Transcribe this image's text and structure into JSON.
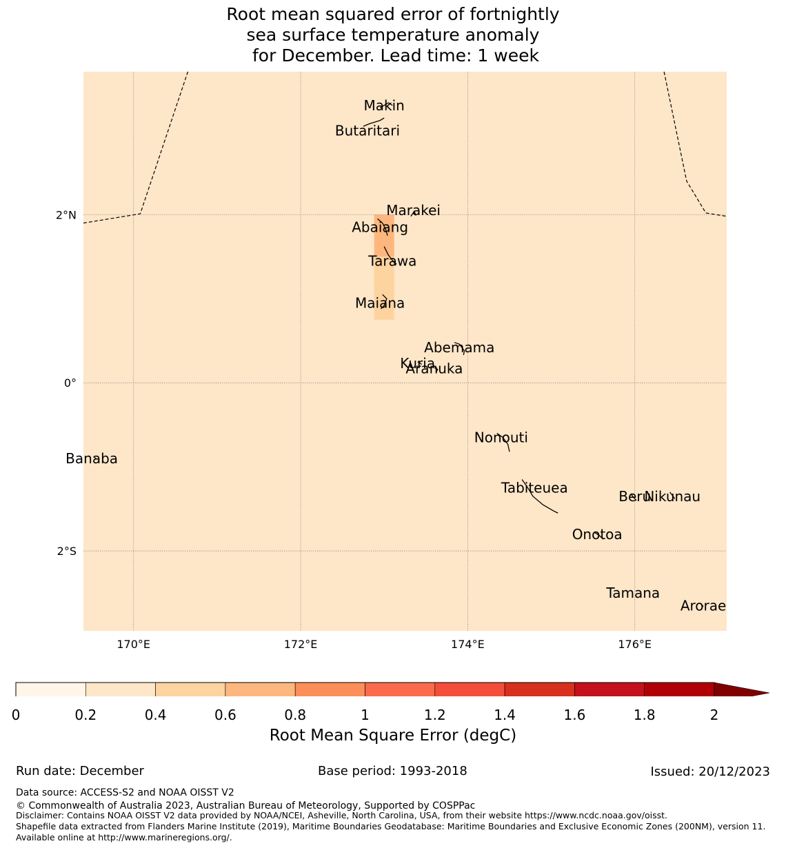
{
  "title": {
    "line1": "Root mean squared error of fortnightly",
    "line2": "sea surface temperature anomaly",
    "line3": " for December. Lead time: 1 week"
  },
  "map": {
    "lon_range": [
      169.4,
      177.1
    ],
    "lat_range": [
      -2.95,
      3.7
    ],
    "background_rmse_bin": "0.2-0.4",
    "background_color": "#fee6c8",
    "lat_ticks": [
      {
        "value": 2,
        "label": "2°N"
      },
      {
        "value": 0,
        "label": "0°"
      },
      {
        "value": -2,
        "label": "2°S"
      }
    ],
    "lon_ticks": [
      {
        "value": 170,
        "label": "170°E"
      },
      {
        "value": 172,
        "label": "172°E"
      },
      {
        "value": 174,
        "label": "174°E"
      },
      {
        "value": 176,
        "label": "176°E"
      }
    ],
    "highlight_cells": [
      {
        "lon": [
          172.88,
          173.12
        ],
        "lat": [
          2.0,
          1.5
        ],
        "color": "#fdb77e"
      },
      {
        "lon": [
          172.88,
          173.12
        ],
        "lat": [
          1.5,
          0.75
        ],
        "color": "#fdd3a0"
      }
    ],
    "islands": [
      {
        "name": "Makin",
        "lon": 173.0,
        "lat": 3.3
      },
      {
        "name": "Butaritari",
        "lon": 172.8,
        "lat": 3.0
      },
      {
        "name": "Marakei",
        "lon": 173.35,
        "lat": 2.05
      },
      {
        "name": "Abaiang",
        "lon": 172.95,
        "lat": 1.85
      },
      {
        "name": "Tarawa",
        "lon": 173.1,
        "lat": 1.45
      },
      {
        "name": "Maiana",
        "lon": 172.95,
        "lat": 0.95
      },
      {
        "name": "Abemama",
        "lon": 173.9,
        "lat": 0.42
      },
      {
        "name": "Kuria",
        "lon": 173.4,
        "lat": 0.23
      },
      {
        "name": "Aranuka",
        "lon": 173.6,
        "lat": 0.17
      },
      {
        "name": "Nonouti",
        "lon": 174.4,
        "lat": -0.65
      },
      {
        "name": "Banaba",
        "lon": 169.5,
        "lat": -0.9
      },
      {
        "name": "Tabiteuea",
        "lon": 174.8,
        "lat": -1.25
      },
      {
        "name": "Beru",
        "lon": 176.0,
        "lat": -1.35
      },
      {
        "name": "Nikunau",
        "lon": 176.45,
        "lat": -1.35
      },
      {
        "name": "Onotoa",
        "lon": 175.55,
        "lat": -1.8
      },
      {
        "name": "Tamana",
        "lon": 175.98,
        "lat": -2.5
      },
      {
        "name": "Arorae",
        "lon": 176.82,
        "lat": -2.65
      }
    ],
    "boundary_left": [
      [
        169.4,
        1.9
      ],
      [
        170.08,
        2.01
      ],
      [
        170.65,
        3.7
      ]
    ],
    "boundary_right": [
      [
        176.35,
        3.7
      ],
      [
        176.62,
        2.4
      ],
      [
        176.85,
        2.02
      ],
      [
        177.1,
        1.98
      ]
    ]
  },
  "colorbar": {
    "bins": [
      0,
      0.2,
      0.4,
      0.6,
      0.8,
      1,
      1.2,
      1.4,
      1.6,
      1.8,
      2
    ],
    "tick_labels": [
      "0",
      "0.2",
      "0.4",
      "0.6",
      "0.8",
      "1",
      "1.2",
      "1.4",
      "1.6",
      "1.8",
      "2"
    ],
    "colors": [
      "#fff5e8",
      "#fee6c8",
      "#fdd3a0",
      "#fdb77e",
      "#fc8e59",
      "#fb6a4a",
      "#f44d38",
      "#d7301f",
      "#c4101b",
      "#b00005"
    ],
    "extend_color": "#800000",
    "label": "Root Mean Square Error (degC)"
  },
  "footer": {
    "run_date": "Run date: December",
    "base_period": "Base period: 1993-2018",
    "issued": "Issued: 20/12/2023",
    "data_source": "Data source: ACCESS-S2 and NOAA OISST V2",
    "copyright": "© Commonwealth of Australia 2023, Australian Bureau of Meteorology, Supported by COSPPac",
    "disclaimer": "Disclaimer: Contains NOAA OISST V2 data provided by NOAA/NCEI, Asheville, North Carolina, USA, from their website https://www.ncdc.noaa.gov/oisst.",
    "shapefile": "Shapefile data extracted from Flanders Marine Institute (2019), Maritime Boundaries Geodatabase: Maritime Boundaries and Exclusive Economic Zones (200NM), version 11. Available online at http://www.marineregions.org/."
  }
}
